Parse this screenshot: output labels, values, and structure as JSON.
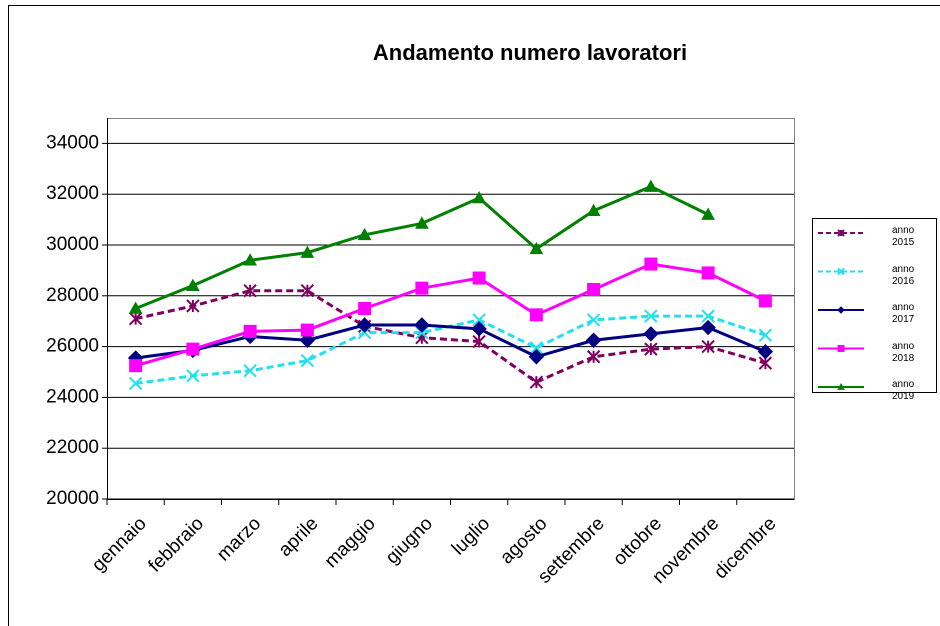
{
  "chart_data": {
    "type": "line",
    "title": "Andamento numero lavoratori",
    "categories": [
      "gennaio",
      "febbraio",
      "marzo",
      "aprile",
      "maggio",
      "giugno",
      "luglio",
      "agosto",
      "settembre",
      "ottobre",
      "novembre",
      "dicembre"
    ],
    "series": [
      {
        "name": "anno 2015",
        "color": "#800060",
        "marker": "asterisk",
        "dashed": true,
        "values": [
          27100,
          27600,
          28200,
          28200,
          26800,
          26350,
          26200,
          24600,
          25600,
          25900,
          26000,
          25350
        ]
      },
      {
        "name": "anno 2016",
        "color": "#22e0f0",
        "marker": "cross",
        "dashed": true,
        "values": [
          24550,
          24850,
          25050,
          25450,
          26550,
          26550,
          27050,
          25950,
          27050,
          27200,
          27200,
          26450
        ]
      },
      {
        "name": "anno 2017",
        "color": "#000080",
        "marker": "diamond",
        "dashed": false,
        "values": [
          25550,
          25850,
          26400,
          26250,
          26850,
          26850,
          26700,
          25600,
          26250,
          26500,
          26750,
          25800
        ]
      },
      {
        "name": "anno 2018",
        "color": "#ff00ff",
        "marker": "square",
        "dashed": false,
        "values": [
          25250,
          25900,
          26600,
          26650,
          27500,
          28300,
          28700,
          27250,
          28250,
          29250,
          28900,
          27800
        ]
      },
      {
        "name": "anno 2019",
        "color": "#008000",
        "marker": "triangle",
        "dashed": false,
        "values": [
          27500,
          28400,
          29400,
          29700,
          30400,
          30850,
          31850,
          29850,
          31350,
          32300,
          31200,
          null
        ]
      }
    ],
    "ylim": [
      20000,
      35000
    ],
    "yticks": [
      20000,
      22000,
      24000,
      26000,
      28000,
      30000,
      32000,
      34000
    ],
    "grid": true,
    "legend": "right"
  }
}
